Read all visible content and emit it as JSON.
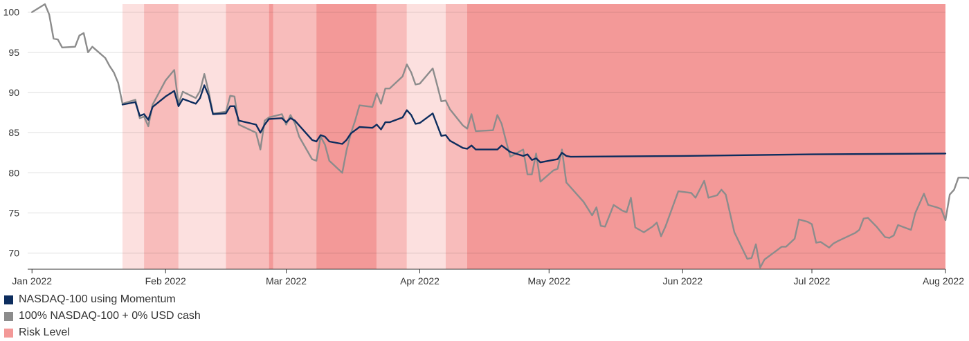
{
  "chart_data": {
    "type": "line",
    "title": "",
    "xlabel": "",
    "ylabel": "",
    "ylim": [
      68,
      101
    ],
    "xlim": [
      "2021-12-31",
      "2022-08-01"
    ],
    "y_ticks": [
      70,
      75,
      80,
      85,
      90,
      95,
      100
    ],
    "x_ticks": [
      {
        "date": "2022-01-01",
        "label": "Jan 2022"
      },
      {
        "date": "2022-02-01",
        "label": "Feb 2022"
      },
      {
        "date": "2022-03-01",
        "label": "Mar 2022"
      },
      {
        "date": "2022-04-01",
        "label": "Apr 2022"
      },
      {
        "date": "2022-05-01",
        "label": "May 2022"
      },
      {
        "date": "2022-06-01",
        "label": "Jun 2022"
      },
      {
        "date": "2022-07-01",
        "label": "Jul 2022"
      },
      {
        "date": "2022-08-01",
        "label": "Aug 2022"
      }
    ],
    "grid": true,
    "legend_position": "bottom-left",
    "risk_bands": [
      {
        "start": "2022-01-22",
        "end": "2022-01-27",
        "level": 1,
        "color": "#fce0df"
      },
      {
        "start": "2022-01-27",
        "end": "2022-02-04",
        "level": 2,
        "color": "#f8bcbb"
      },
      {
        "start": "2022-02-04",
        "end": "2022-02-15",
        "level": 1,
        "color": "#fce0df"
      },
      {
        "start": "2022-02-15",
        "end": "2022-02-25",
        "level": 2,
        "color": "#f8bcbb"
      },
      {
        "start": "2022-02-25",
        "end": "2022-02-26",
        "level": 3,
        "color": "#f39998"
      },
      {
        "start": "2022-02-26",
        "end": "2022-03-08",
        "level": 2,
        "color": "#f8bcbb"
      },
      {
        "start": "2022-03-08",
        "end": "2022-03-22",
        "level": 3,
        "color": "#f39998"
      },
      {
        "start": "2022-03-22",
        "end": "2022-03-29",
        "level": 2,
        "color": "#f8bcbb"
      },
      {
        "start": "2022-03-29",
        "end": "2022-04-07",
        "level": 1,
        "color": "#fce0df"
      },
      {
        "start": "2022-04-07",
        "end": "2022-04-12",
        "level": 2,
        "color": "#f8bcbb"
      },
      {
        "start": "2022-04-12",
        "end": "2022-08-01",
        "level": 3,
        "color": "#f39998"
      }
    ],
    "series": [
      {
        "name": "NASDAQ-100 using Momentum",
        "color": "#0d2d5e",
        "points": [
          [
            "2022-01-22",
            88.5
          ],
          [
            "2022-01-25",
            88.8
          ],
          [
            "2022-01-26",
            87.1
          ],
          [
            "2022-01-27",
            87.3
          ],
          [
            "2022-01-28",
            86.6
          ],
          [
            "2022-01-29",
            88.2
          ],
          [
            "2022-02-01",
            89.5
          ],
          [
            "2022-02-03",
            90.2
          ],
          [
            "2022-02-04",
            88.3
          ],
          [
            "2022-02-05",
            89.2
          ],
          [
            "2022-02-08",
            88.6
          ],
          [
            "2022-02-09",
            89.3
          ],
          [
            "2022-02-10",
            90.9
          ],
          [
            "2022-02-11",
            89.6
          ],
          [
            "2022-02-12",
            87.3
          ],
          [
            "2022-02-15",
            87.4
          ],
          [
            "2022-02-16",
            88.3
          ],
          [
            "2022-02-17",
            88.3
          ],
          [
            "2022-02-18",
            86.5
          ],
          [
            "2022-02-22",
            86.0
          ],
          [
            "2022-02-23",
            85.0
          ],
          [
            "2022-02-24",
            86.0
          ],
          [
            "2022-02-25",
            86.7
          ],
          [
            "2022-02-28",
            86.8
          ],
          [
            "2022-03-01",
            86.3
          ],
          [
            "2022-03-02",
            86.8
          ],
          [
            "2022-03-03",
            86.5
          ],
          [
            "2022-03-04",
            85.9
          ],
          [
            "2022-03-07",
            84.1
          ],
          [
            "2022-03-08",
            83.9
          ],
          [
            "2022-03-09",
            84.7
          ],
          [
            "2022-03-10",
            84.5
          ],
          [
            "2022-03-11",
            83.9
          ],
          [
            "2022-03-14",
            83.6
          ],
          [
            "2022-03-15",
            84.1
          ],
          [
            "2022-03-16",
            84.9
          ],
          [
            "2022-03-17",
            85.3
          ],
          [
            "2022-03-18",
            85.7
          ],
          [
            "2022-03-21",
            85.6
          ],
          [
            "2022-03-22",
            86.0
          ],
          [
            "2022-03-23",
            85.4
          ],
          [
            "2022-03-24",
            86.3
          ],
          [
            "2022-03-25",
            86.3
          ],
          [
            "2022-03-28",
            86.9
          ],
          [
            "2022-03-29",
            87.8
          ],
          [
            "2022-03-30",
            87.2
          ],
          [
            "2022-03-31",
            86.1
          ],
          [
            "2022-04-01",
            86.2
          ],
          [
            "2022-04-04",
            87.4
          ],
          [
            "2022-04-05",
            86.0
          ],
          [
            "2022-04-06",
            84.6
          ],
          [
            "2022-04-07",
            84.7
          ],
          [
            "2022-04-08",
            84.0
          ],
          [
            "2022-04-11",
            83.1
          ],
          [
            "2022-04-12",
            83.0
          ],
          [
            "2022-04-13",
            83.4
          ],
          [
            "2022-04-14",
            82.9
          ],
          [
            "2022-04-18",
            82.9
          ],
          [
            "2022-04-19",
            82.9
          ],
          [
            "2022-04-20",
            83.4
          ],
          [
            "2022-04-21",
            83.0
          ],
          [
            "2022-04-22",
            82.6
          ],
          [
            "2022-04-25",
            82.1
          ],
          [
            "2022-04-26",
            82.3
          ],
          [
            "2022-04-27",
            81.6
          ],
          [
            "2022-04-28",
            81.8
          ],
          [
            "2022-04-29",
            81.3
          ],
          [
            "2022-05-02",
            81.6
          ],
          [
            "2022-05-03",
            81.7
          ],
          [
            "2022-05-04",
            82.5
          ],
          [
            "2022-05-05",
            82.1
          ],
          [
            "2022-05-06",
            82.0
          ],
          [
            "2022-06-01",
            82.1
          ],
          [
            "2022-07-01",
            82.3
          ],
          [
            "2022-08-01",
            82.4
          ]
        ]
      },
      {
        "name": "100% NASDAQ-100 + 0% USD cash",
        "color": "#8c8c8c",
        "points": [
          [
            "2022-01-01",
            100.0
          ],
          [
            "2022-01-04",
            101.0
          ],
          [
            "2022-01-05",
            99.7
          ],
          [
            "2022-01-06",
            96.7
          ],
          [
            "2022-01-07",
            96.6
          ],
          [
            "2022-01-08",
            95.6
          ],
          [
            "2022-01-11",
            95.7
          ],
          [
            "2022-01-12",
            97.1
          ],
          [
            "2022-01-13",
            97.4
          ],
          [
            "2022-01-14",
            95.0
          ],
          [
            "2022-01-15",
            95.7
          ],
          [
            "2022-01-18",
            94.3
          ],
          [
            "2022-01-19",
            93.3
          ],
          [
            "2022-01-20",
            92.5
          ],
          [
            "2022-01-21",
            91.2
          ],
          [
            "2022-01-22",
            88.6
          ],
          [
            "2022-01-25",
            89.1
          ],
          [
            "2022-01-26",
            86.8
          ],
          [
            "2022-01-27",
            87.0
          ],
          [
            "2022-01-28",
            85.8
          ],
          [
            "2022-01-29",
            88.5
          ],
          [
            "2022-02-01",
            91.5
          ],
          [
            "2022-02-03",
            92.8
          ],
          [
            "2022-02-04",
            88.6
          ],
          [
            "2022-02-05",
            90.1
          ],
          [
            "2022-02-08",
            89.3
          ],
          [
            "2022-02-09",
            90.2
          ],
          [
            "2022-02-10",
            92.3
          ],
          [
            "2022-02-11",
            90.1
          ],
          [
            "2022-02-12",
            87.4
          ],
          [
            "2022-02-15",
            87.6
          ],
          [
            "2022-02-16",
            89.6
          ],
          [
            "2022-02-17",
            89.5
          ],
          [
            "2022-02-18",
            86.0
          ],
          [
            "2022-02-22",
            85.0
          ],
          [
            "2022-02-23",
            82.9
          ],
          [
            "2022-02-24",
            86.5
          ],
          [
            "2022-02-25",
            86.9
          ],
          [
            "2022-02-28",
            87.3
          ],
          [
            "2022-03-01",
            86.0
          ],
          [
            "2022-03-02",
            87.2
          ],
          [
            "2022-03-03",
            86.2
          ],
          [
            "2022-03-04",
            84.5
          ],
          [
            "2022-03-07",
            81.7
          ],
          [
            "2022-03-08",
            81.5
          ],
          [
            "2022-03-09",
            84.5
          ],
          [
            "2022-03-10",
            83.5
          ],
          [
            "2022-03-11",
            81.5
          ],
          [
            "2022-03-14",
            80.0
          ],
          [
            "2022-03-15",
            82.8
          ],
          [
            "2022-03-16",
            84.9
          ],
          [
            "2022-03-17",
            86.5
          ],
          [
            "2022-03-18",
            88.4
          ],
          [
            "2022-03-21",
            88.2
          ],
          [
            "2022-03-22",
            89.9
          ],
          [
            "2022-03-23",
            88.6
          ],
          [
            "2022-03-24",
            90.5
          ],
          [
            "2022-03-25",
            90.5
          ],
          [
            "2022-03-28",
            92.0
          ],
          [
            "2022-03-29",
            93.5
          ],
          [
            "2022-03-30",
            92.5
          ],
          [
            "2022-03-31",
            91.0
          ],
          [
            "2022-04-01",
            91.1
          ],
          [
            "2022-04-04",
            93.0
          ],
          [
            "2022-04-05",
            91.0
          ],
          [
            "2022-04-06",
            88.9
          ],
          [
            "2022-04-07",
            89.0
          ],
          [
            "2022-04-08",
            87.9
          ],
          [
            "2022-04-11",
            85.9
          ],
          [
            "2022-04-12",
            85.5
          ],
          [
            "2022-04-13",
            87.3
          ],
          [
            "2022-04-14",
            85.2
          ],
          [
            "2022-04-18",
            85.3
          ],
          [
            "2022-04-19",
            87.2
          ],
          [
            "2022-04-20",
            86.1
          ],
          [
            "2022-04-21",
            84.0
          ],
          [
            "2022-04-22",
            82.0
          ],
          [
            "2022-04-25",
            82.9
          ],
          [
            "2022-04-26",
            79.8
          ],
          [
            "2022-04-27",
            79.8
          ],
          [
            "2022-04-28",
            82.4
          ],
          [
            "2022-04-29",
            78.9
          ],
          [
            "2022-05-02",
            80.3
          ],
          [
            "2022-05-03",
            80.5
          ],
          [
            "2022-05-04",
            82.9
          ],
          [
            "2022-05-05",
            78.8
          ],
          [
            "2022-05-09",
            76.4
          ],
          [
            "2022-05-11",
            74.7
          ],
          [
            "2022-05-12",
            75.7
          ],
          [
            "2022-05-13",
            73.4
          ],
          [
            "2022-05-14",
            73.3
          ],
          [
            "2022-05-16",
            76.0
          ],
          [
            "2022-05-18",
            75.3
          ],
          [
            "2022-05-19",
            75.1
          ],
          [
            "2022-05-20",
            76.9
          ],
          [
            "2022-05-21",
            73.2
          ],
          [
            "2022-05-23",
            72.6
          ],
          [
            "2022-05-25",
            73.3
          ],
          [
            "2022-05-26",
            73.8
          ],
          [
            "2022-05-27",
            72.1
          ],
          [
            "2022-05-28",
            73.3
          ],
          [
            "2022-05-31",
            77.7
          ],
          [
            "2022-06-03",
            77.5
          ],
          [
            "2022-06-04",
            76.9
          ],
          [
            "2022-06-06",
            79.0
          ],
          [
            "2022-06-07",
            76.9
          ],
          [
            "2022-06-09",
            77.2
          ],
          [
            "2022-06-10",
            77.9
          ],
          [
            "2022-06-11",
            77.3
          ],
          [
            "2022-06-13",
            72.6
          ],
          [
            "2022-06-16",
            69.3
          ],
          [
            "2022-06-17",
            69.4
          ],
          [
            "2022-06-18",
            71.1
          ],
          [
            "2022-06-19",
            68.2
          ],
          [
            "2022-06-20",
            69.2
          ],
          [
            "2022-06-22",
            70.0
          ],
          [
            "2022-06-24",
            70.8
          ],
          [
            "2022-06-25",
            70.8
          ],
          [
            "2022-06-27",
            71.8
          ],
          [
            "2022-06-28",
            74.2
          ],
          [
            "2022-06-30",
            73.9
          ],
          [
            "2022-07-01",
            73.6
          ],
          [
            "2022-07-02",
            71.3
          ],
          [
            "2022-07-03",
            71.4
          ],
          [
            "2022-07-05",
            70.7
          ],
          [
            "2022-07-06",
            71.2
          ],
          [
            "2022-07-07",
            71.5
          ],
          [
            "2022-07-11",
            72.5
          ],
          [
            "2022-07-12",
            72.9
          ],
          [
            "2022-07-13",
            74.3
          ],
          [
            "2022-07-14",
            74.4
          ],
          [
            "2022-07-16",
            73.3
          ],
          [
            "2022-07-18",
            72.0
          ],
          [
            "2022-07-19",
            71.9
          ],
          [
            "2022-07-20",
            72.2
          ],
          [
            "2022-07-21",
            73.5
          ],
          [
            "2022-07-23",
            73.1
          ],
          [
            "2022-07-24",
            72.9
          ],
          [
            "2022-07-25",
            75.0
          ],
          [
            "2022-07-27",
            77.4
          ],
          [
            "2022-07-28",
            76.0
          ],
          [
            "2022-07-30",
            75.7
          ],
          [
            "2022-07-31",
            75.5
          ],
          [
            "2022-08-01",
            74.1
          ],
          [
            "2022-08-02",
            77.3
          ],
          [
            "2022-08-03",
            77.9
          ],
          [
            "2022-08-04",
            79.4
          ],
          [
            "2022-08-06",
            79.4
          ],
          [
            "2022-08-07",
            79.2
          ]
        ]
      }
    ]
  },
  "legend": {
    "items": [
      {
        "label": "NASDAQ-100 using Momentum",
        "color": "#0d2d5e"
      },
      {
        "label": "100% NASDAQ-100 + 0% USD cash",
        "color": "#8c8c8c"
      },
      {
        "label": "Risk Level",
        "color": "#f39998"
      }
    ]
  }
}
